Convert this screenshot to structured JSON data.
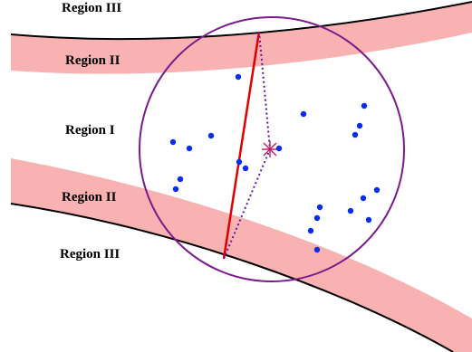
{
  "labels": {
    "region_iii_top": "Region III",
    "region_ii_top": "Region II",
    "region_i": "Region I",
    "region_ii_bottom": "Region II",
    "region_iii_bottom": "Region III"
  },
  "colors": {
    "band": "#f8b2b2",
    "boundary": "#000000",
    "circle": "#7a1a8c",
    "chord": "#e00000",
    "dotted_radius": "#5a1aa6",
    "dots": "#0a2cf0",
    "center_marker": "#c02060"
  },
  "point_count": 23
}
